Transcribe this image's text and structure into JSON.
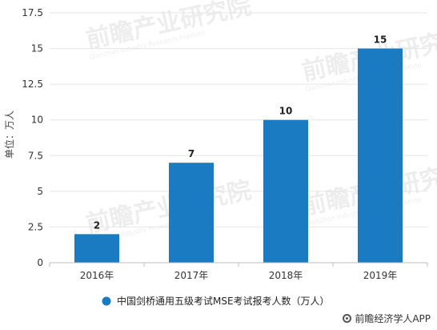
{
  "chart_data": {
    "type": "bar",
    "categories": [
      "2016年",
      "2017年",
      "2018年",
      "2019年"
    ],
    "values": [
      2,
      7,
      10,
      15
    ],
    "data_labels": [
      "2",
      "7",
      "10",
      "15"
    ],
    "ylabel": "单位：万人",
    "xlabel": "",
    "ylim": [
      0,
      17.5
    ],
    "yticks": [
      "0",
      "2.5",
      "5",
      "7.5",
      "10",
      "12.5",
      "15",
      "17.5"
    ],
    "ytick_values": [
      0,
      2.5,
      5,
      7.5,
      10,
      12.5,
      15,
      17.5
    ],
    "grid": true,
    "legend": {
      "position": "bottom",
      "label": "中国剑桥通用五级考试MSE考试报考人数（万人）"
    },
    "colors": {
      "bar": "#1a7bc3"
    }
  },
  "watermark": {
    "text": "前瞻产业研究院",
    "sub": "Qianzhan Industry Research Institute"
  },
  "brand": {
    "text": "前瞻经济学人APP"
  }
}
